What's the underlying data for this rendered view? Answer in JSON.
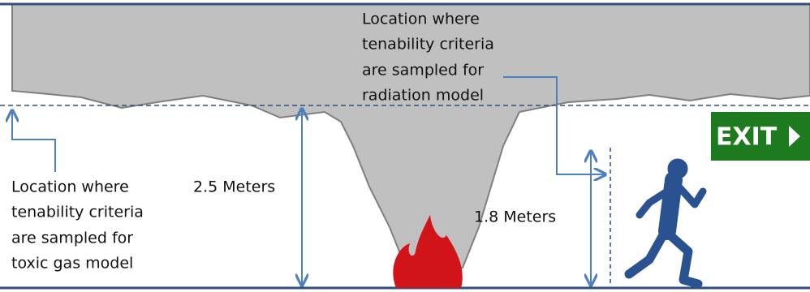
{
  "labels": {
    "radiation": [
      "Location where",
      "tenability criteria",
      "are sampled for",
      "radiation model"
    ],
    "toxic": [
      "Location where",
      "tenability criteria",
      "are sampled for",
      "toxic gas model"
    ],
    "ceiling_height": "2.5 Meters",
    "person_height": "1.8 Meters"
  },
  "exit_sign": "EXIT"
}
